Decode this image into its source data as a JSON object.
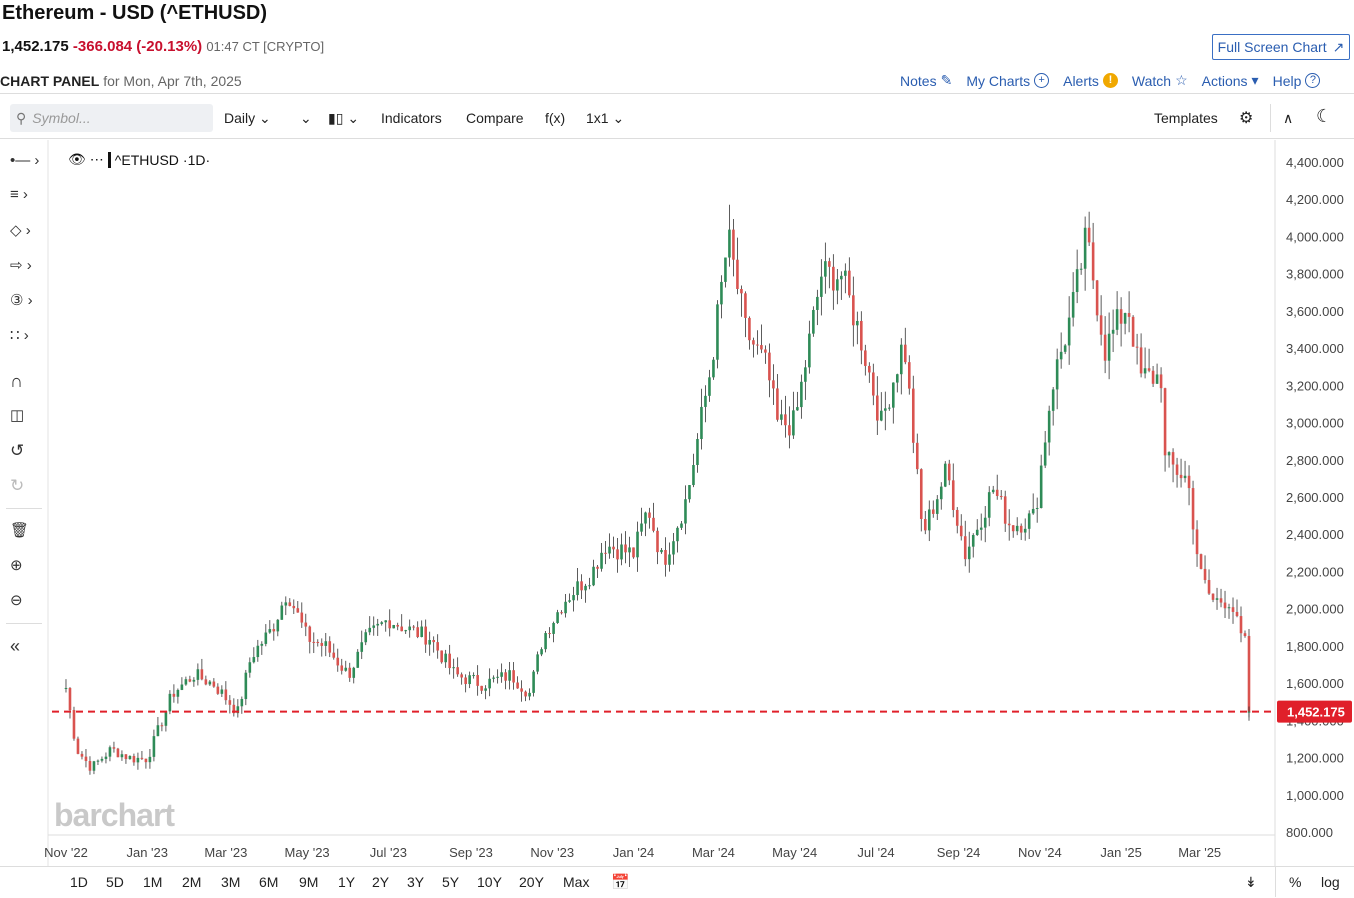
{
  "header": {
    "title": "Ethereum - USD (^ETHUSD)",
    "last": "1,452.175",
    "change": "-366.084 (-20.13%)",
    "time": "01:47 CT [CRYPTO]",
    "full_screen": "Full Screen Chart",
    "panel_label": "CHART PANEL",
    "panel_date": "for Mon, Apr 7th, 2025"
  },
  "nav": {
    "notes": "Notes",
    "my_charts": "My Charts",
    "alerts": "Alerts",
    "watch": "Watch",
    "actions": "Actions",
    "help": "Help"
  },
  "toolbar": {
    "symbol_placeholder": "Symbol...",
    "interval": "Daily",
    "indicators": "Indicators",
    "compare": "Compare",
    "fx": "f(x)",
    "layout": "1x1",
    "templates": "Templates"
  },
  "legend": {
    "symbol": "^ETHUSD",
    "interval": "1D"
  },
  "watermark": "barchart",
  "ranges": [
    "1D",
    "5D",
    "1M",
    "2M",
    "3M",
    "6M",
    "9M",
    "1Y",
    "2Y",
    "3Y",
    "5Y",
    "10Y",
    "20Y",
    "Max"
  ],
  "axis_toggles": {
    "percent": "%",
    "log": "log"
  },
  "colors": {
    "up": "#2e8b57",
    "down": "#d9534f",
    "last_line": "#e0202a"
  },
  "chart_data": {
    "type": "line",
    "style": "candlestick",
    "title": "Ethereum - USD (^ETHUSD)",
    "xlabel": "",
    "ylabel": "",
    "ylim": [
      800,
      4400
    ],
    "y_ticks": [
      "4,400.000",
      "4,200.000",
      "4,000.000",
      "3,800.000",
      "3,600.000",
      "3,400.000",
      "3,200.000",
      "3,000.000",
      "2,800.000",
      "2,600.000",
      "2,400.000",
      "2,200.000",
      "2,000.000",
      "1,800.000",
      "1,600.000",
      "1,400.000",
      "1,200.000",
      "1,000.000",
      "800.000"
    ],
    "x_ticks": [
      "Nov '22",
      "Jan '23",
      "Mar '23",
      "May '23",
      "Jul '23",
      "Sep '23",
      "Nov '23",
      "Jan '24",
      "Mar '24",
      "May '24",
      "Jul '24",
      "Sep '24",
      "Nov '24",
      "Jan '25",
      "Mar '25"
    ],
    "last_price": 1452.175,
    "last_price_label": "1,452.175",
    "series": [
      {
        "x": [
          "2022-11-01",
          "2022-11-09",
          "2022-11-20",
          "2022-12-05",
          "2022-12-20",
          "2023-01-01",
          "2023-01-20",
          "2023-02-05",
          "2023-02-20",
          "2023-03-10",
          "2023-03-20",
          "2023-04-05",
          "2023-04-16",
          "2023-05-01",
          "2023-05-15",
          "2023-06-01",
          "2023-06-15",
          "2023-07-01",
          "2023-07-14",
          "2023-08-01",
          "2023-08-15",
          "2023-08-20",
          "2023-09-10",
          "2023-10-01",
          "2023-10-15",
          "2023-10-25",
          "2023-11-10",
          "2023-12-01",
          "2023-12-10",
          "2024-01-01",
          "2024-01-12",
          "2024-01-23",
          "2024-02-10",
          "2024-02-28",
          "2024-03-12",
          "2024-03-25",
          "2024-04-10",
          "2024-04-18",
          "2024-05-01",
          "2024-05-21",
          "2024-06-05",
          "2024-06-20",
          "2024-07-05",
          "2024-07-22",
          "2024-08-05",
          "2024-08-23",
          "2024-09-06",
          "2024-09-27",
          "2024-10-10",
          "2024-10-28",
          "2024-11-10",
          "2024-11-25",
          "2024-12-06",
          "2024-12-20",
          "2025-01-06",
          "2025-01-15",
          "2025-02-01",
          "2025-02-03",
          "2025-02-20",
          "2025-03-01",
          "2025-03-10",
          "2025-03-24",
          "2025-04-01",
          "2025-04-06",
          "2025-04-07"
        ],
        "values": [
          1580,
          1250,
          1150,
          1250,
          1200,
          1200,
          1550,
          1650,
          1600,
          1450,
          1750,
          1900,
          2100,
          1850,
          1800,
          1650,
          1850,
          1950,
          1900,
          1850,
          1700,
          1650,
          1600,
          1650,
          1550,
          1850,
          2050,
          2200,
          2350,
          2300,
          2550,
          2250,
          2600,
          3300,
          4000,
          3500,
          3300,
          3000,
          3000,
          3800,
          3800,
          3450,
          3000,
          3450,
          2400,
          2750,
          2300,
          2650,
          2450,
          2500,
          3200,
          3600,
          4000,
          3400,
          3650,
          3250,
          3250,
          2800,
          2700,
          2200,
          2050,
          2050,
          1850,
          1800,
          1452
        ]
      }
    ]
  }
}
